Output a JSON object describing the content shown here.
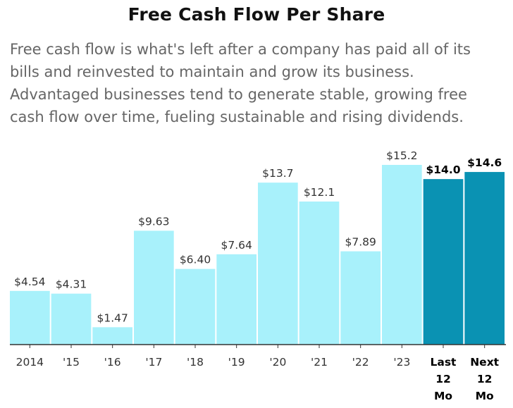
{
  "chart_data": {
    "type": "bar",
    "title": "Free Cash Flow Per Share",
    "subtitle": "Free cash flow is what's left after a company has paid all of its bills and reinvested to maintain and grow its business. Advantaged businesses tend to generate stable, growing free cash flow over time, fueling sustainable and rising dividends.",
    "categories": [
      "2014",
      "'15",
      "'16",
      "'17",
      "'18",
      "'19",
      "'20",
      "'21",
      "'22",
      "'23",
      "Last 12 Mo",
      "Next 12 Mo"
    ],
    "category_lines": [
      [
        "2014"
      ],
      [
        "'15"
      ],
      [
        "'16"
      ],
      [
        "'17"
      ],
      [
        "'18"
      ],
      [
        "'19"
      ],
      [
        "'20"
      ],
      [
        "'21"
      ],
      [
        "'22"
      ],
      [
        "'23"
      ],
      [
        "Last",
        "12",
        "Mo"
      ],
      [
        "Next",
        "12",
        "Mo"
      ]
    ],
    "values": [
      4.54,
      4.31,
      1.47,
      9.63,
      6.4,
      7.64,
      13.7,
      12.1,
      7.89,
      15.2,
      14.0,
      14.6
    ],
    "value_labels": [
      "$4.54",
      "$4.31",
      "$1.47",
      "$9.63",
      "$6.40",
      "$7.64",
      "$13.7",
      "$12.1",
      "$7.89",
      "$15.2",
      "$14.0",
      "$14.6"
    ],
    "highlighted": [
      false,
      false,
      false,
      false,
      false,
      false,
      false,
      false,
      false,
      false,
      true,
      true
    ],
    "ylim": [
      0,
      15.2
    ],
    "grid": false,
    "colors": {
      "bar": "#a8f1fb",
      "bar_highlight": "#0a92b3",
      "axis": "#333333",
      "label": "#333333",
      "label_highlight": "#000000"
    }
  }
}
